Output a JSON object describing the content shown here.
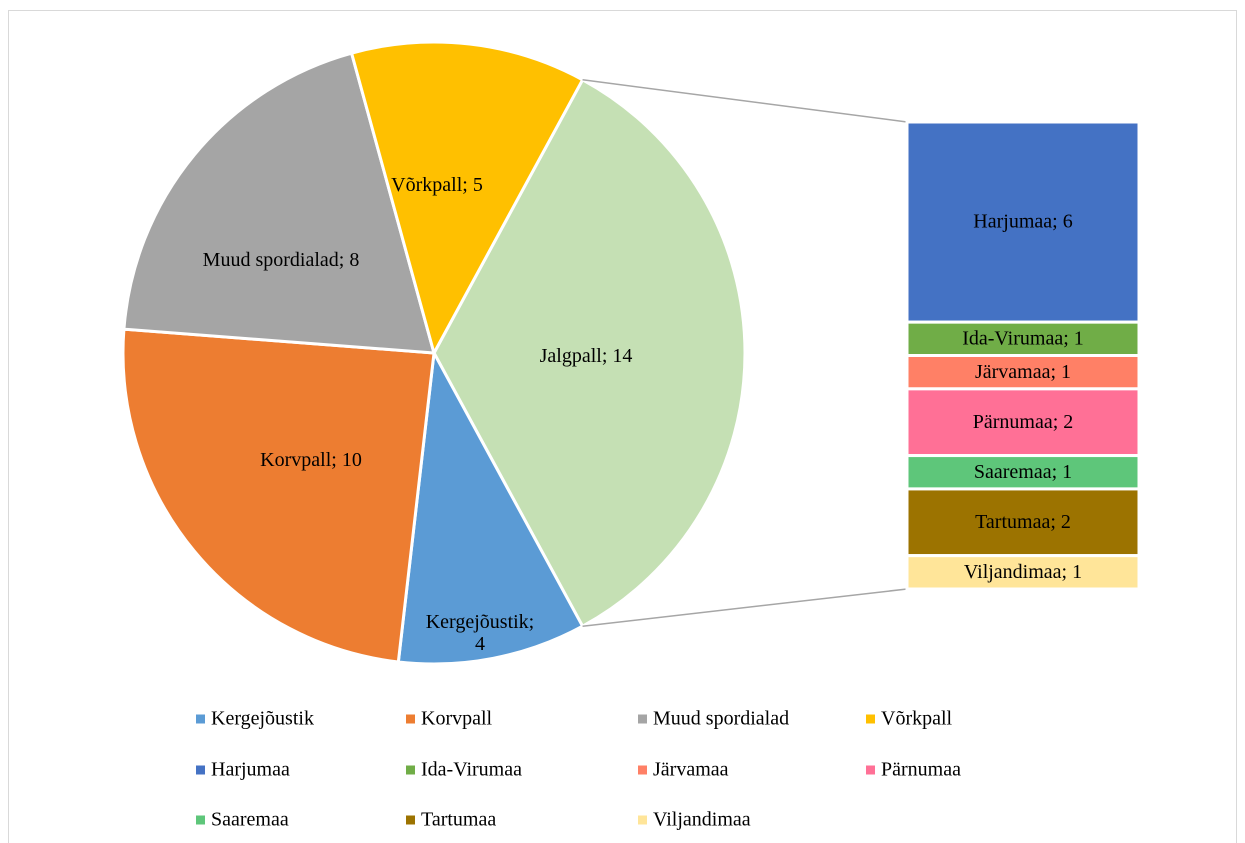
{
  "chart_data": {
    "type": "pie_of_bar",
    "categories": [
      "Kergejõustik",
      "Korvpall",
      "Muud spordialad",
      "Võrkpall"
    ],
    "values": [
      4,
      10,
      8,
      5
    ],
    "value_labels": [
      "Kergejõustik; 4",
      "Korvpall; 10",
      "Muud spordialad; 8",
      "Võrkpall; 5"
    ],
    "colors": [
      "#5b9bd5",
      "#ed7d31",
      "#a5a5a5",
      "#ffc000"
    ],
    "other": {
      "value": 14,
      "value_label": "Jalgpall; 14",
      "color": "#c5e0b4"
    },
    "bar": {
      "categories": [
        "Harjumaa",
        "Ida-Virumaa",
        "Järvamaa",
        "Pärnumaa",
        "Saaremaa",
        "Tartumaa",
        "Viljandimaa"
      ],
      "values": [
        6,
        1,
        1,
        2,
        1,
        2,
        1
      ],
      "value_labels": [
        "Harjumaa; 6",
        "Ida-Virumaa; 1",
        "Järvamaa; 1",
        "Pärnumaa; 2",
        "Saaremaa; 1",
        "Tartumaa; 2",
        "Viljandimaa; 1"
      ],
      "colors": [
        "#4472c4",
        "#70ad47",
        "#ff8066",
        "#ff7096",
        "#5ec67a",
        "#9c7300",
        "#ffe599"
      ]
    }
  }
}
